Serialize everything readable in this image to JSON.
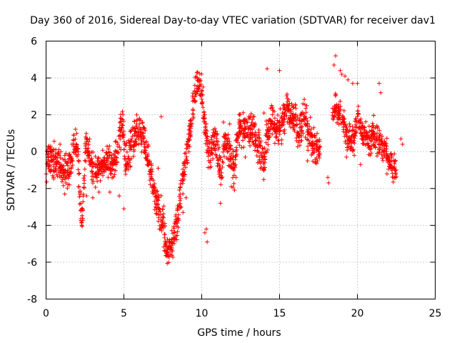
{
  "chart_data": {
    "type": "scatter",
    "title": "Day 360 of 2016, Sidereal Day-to-day VTEC variation (SDTVAR) for receiver dav1",
    "xlabel": "GPS time / hours",
    "ylabel": "SDTVAR / TECUs",
    "xlim": [
      0,
      25
    ],
    "ylim": [
      -8,
      6
    ],
    "xticks": [
      0,
      5,
      10,
      15,
      20,
      25
    ],
    "yticks": [
      -8,
      -6,
      -4,
      -2,
      0,
      2,
      4,
      6
    ],
    "xtick_labels": [
      "0",
      "5",
      "10",
      "15",
      "20",
      "25"
    ],
    "ytick_labels": [
      "-8",
      "-6",
      "-4",
      "-2",
      "0",
      "2",
      "4",
      "6"
    ],
    "grid": true,
    "marker": "+",
    "color": "#ff0000",
    "series": [
      {
        "name": "dav1",
        "trace": [
          [
            0.0,
            -0.8
          ],
          [
            0.2,
            -0.3
          ],
          [
            0.4,
            -0.6
          ],
          [
            0.6,
            -0.5
          ],
          [
            0.8,
            -0.7
          ],
          [
            1.0,
            -0.9
          ],
          [
            1.2,
            -1.2
          ],
          [
            1.4,
            -1.0
          ],
          [
            1.6,
            -0.6
          ],
          [
            1.8,
            0.2
          ],
          [
            2.0,
            0.4
          ],
          [
            2.1,
            -1.0
          ],
          [
            2.2,
            -3.0
          ],
          [
            2.3,
            -4.0
          ],
          [
            2.4,
            -2.5
          ],
          [
            2.5,
            -0.5
          ],
          [
            2.6,
            0.6
          ],
          [
            2.7,
            0.3
          ],
          [
            2.9,
            -0.8
          ],
          [
            3.1,
            -1.1
          ],
          [
            3.3,
            -0.9
          ],
          [
            3.6,
            -0.8
          ],
          [
            3.9,
            -0.7
          ],
          [
            4.2,
            -0.8
          ],
          [
            4.4,
            -0.6
          ],
          [
            4.6,
            0.2
          ],
          [
            4.8,
            1.2
          ],
          [
            4.95,
            1.4
          ],
          [
            5.1,
            -0.6
          ],
          [
            5.3,
            -0.4
          ],
          [
            5.5,
            0.5
          ],
          [
            5.7,
            1.0
          ],
          [
            5.9,
            1.1
          ],
          [
            6.1,
            0.9
          ],
          [
            6.3,
            0.6
          ],
          [
            6.5,
            -0.2
          ],
          [
            6.7,
            -1.0
          ],
          [
            6.9,
            -2.0
          ],
          [
            7.1,
            -2.7
          ],
          [
            7.3,
            -3.3
          ],
          [
            7.5,
            -3.8
          ],
          [
            7.7,
            -5.0
          ],
          [
            7.85,
            -5.7
          ],
          [
            8.0,
            -5.2
          ],
          [
            8.2,
            -4.6
          ],
          [
            8.4,
            -3.8
          ],
          [
            8.6,
            -2.5
          ],
          [
            8.8,
            -1.5
          ],
          [
            9.0,
            -0.3
          ],
          [
            9.2,
            0.8
          ],
          [
            9.4,
            2.2
          ],
          [
            9.6,
            3.4
          ],
          [
            9.75,
            3.7
          ],
          [
            9.9,
            3.8
          ],
          [
            10.1,
            2.4
          ],
          [
            10.3,
            0.5
          ],
          [
            10.5,
            -0.2
          ],
          [
            10.7,
            0.4
          ],
          [
            10.9,
            0.8
          ],
          [
            11.1,
            -0.7
          ],
          [
            11.3,
            -1.0
          ],
          [
            11.5,
            0.5
          ],
          [
            11.7,
            0.2
          ],
          [
            11.9,
            -0.6
          ],
          [
            12.1,
            -1.0
          ],
          [
            12.3,
            1.0
          ],
          [
            12.6,
            1.2
          ],
          [
            12.9,
            1.4
          ],
          [
            13.2,
            1.2
          ],
          [
            13.5,
            0.6
          ],
          [
            13.8,
            -0.3
          ],
          [
            14.0,
            -0.8
          ],
          [
            14.2,
            1.2
          ],
          [
            14.5,
            1.8
          ],
          [
            14.8,
            1.2
          ],
          [
            15.0,
            1.3
          ],
          [
            15.3,
            1.8
          ],
          [
            15.5,
            2.5
          ],
          [
            15.8,
            1.9
          ],
          [
            16.0,
            1.6
          ],
          [
            16.2,
            0.9
          ],
          [
            16.4,
            1.4
          ],
          [
            16.6,
            2.0
          ],
          [
            16.8,
            1.2
          ],
          [
            17.0,
            0.8
          ],
          [
            17.2,
            0.2
          ],
          [
            17.4,
            -0.1
          ],
          [
            17.6,
            0.2
          ]
        ],
        "segments": [
          [
            18.4,
            2.0
          ],
          [
            18.6,
            2.3
          ],
          [
            18.8,
            2.1
          ],
          [
            19.0,
            1.8
          ],
          [
            19.2,
            1.3
          ],
          [
            19.4,
            0.8
          ],
          [
            19.6,
            0.4
          ],
          [
            19.8,
            0.9
          ],
          [
            20.0,
            1.6
          ],
          [
            20.2,
            1.3
          ],
          [
            20.4,
            0.9
          ],
          [
            20.6,
            0.8
          ],
          [
            20.8,
            0.4
          ],
          [
            21.0,
            1.1
          ],
          [
            21.2,
            0.5
          ],
          [
            21.4,
            0.7
          ],
          [
            21.6,
            0.3
          ],
          [
            21.9,
            -0.1
          ],
          [
            22.1,
            -0.6
          ],
          [
            22.3,
            -0.9
          ],
          [
            22.5,
            -0.7
          ]
        ],
        "outliers": [
          [
            10.2,
            -4.4
          ],
          [
            10.3,
            -4.2
          ],
          [
            10.35,
            -4.9
          ],
          [
            11.2,
            -2.8
          ],
          [
            15.0,
            4.4
          ],
          [
            14.2,
            4.5
          ],
          [
            18.1,
            -1.4
          ],
          [
            18.15,
            -1.7
          ],
          [
            18.6,
            5.2
          ],
          [
            18.5,
            4.7
          ],
          [
            18.9,
            4.4
          ],
          [
            19.0,
            4.2
          ],
          [
            19.2,
            4.1
          ],
          [
            19.4,
            3.9
          ],
          [
            19.7,
            3.7
          ],
          [
            20.0,
            3.7
          ],
          [
            21.4,
            3.7
          ],
          [
            21.5,
            3.2
          ],
          [
            22.8,
            0.7
          ],
          [
            22.9,
            0.4
          ],
          [
            7.2,
            -0.9
          ],
          [
            7.4,
            1.9
          ],
          [
            2.6,
            -2.4
          ],
          [
            3.0,
            -2.5
          ],
          [
            3.4,
            -2.2
          ],
          [
            4.1,
            -2.2
          ],
          [
            5.0,
            -3.1
          ],
          [
            4.7,
            -2.4
          ],
          [
            8.8,
            -3.3
          ],
          [
            9.0,
            -2.5
          ],
          [
            11.9,
            -1.9
          ],
          [
            12.2,
            -1.4
          ],
          [
            12.4,
            2.0
          ],
          [
            13.3,
            1.9
          ],
          [
            13.6,
            -0.6
          ],
          [
            14.0,
            2.1
          ],
          [
            16.5,
            2.6
          ],
          [
            16.8,
            -0.5
          ],
          [
            17.2,
            1.3
          ],
          [
            17.4,
            0.6
          ],
          [
            20.2,
            -0.7
          ],
          [
            19.8,
            -0.2
          ],
          [
            19.3,
            -0.3
          ],
          [
            21.9,
            -1.2
          ],
          [
            22.4,
            -1.0
          ],
          [
            0.3,
            0.3
          ],
          [
            0.9,
            0.4
          ],
          [
            1.5,
            -1.8
          ],
          [
            1.2,
            -2.3
          ],
          [
            6.0,
            1.8
          ],
          [
            6.2,
            1.6
          ],
          [
            11.4,
            1.6
          ],
          [
            11.8,
            1.5
          ],
          [
            12.8,
            -0.3
          ]
        ]
      }
    ]
  }
}
